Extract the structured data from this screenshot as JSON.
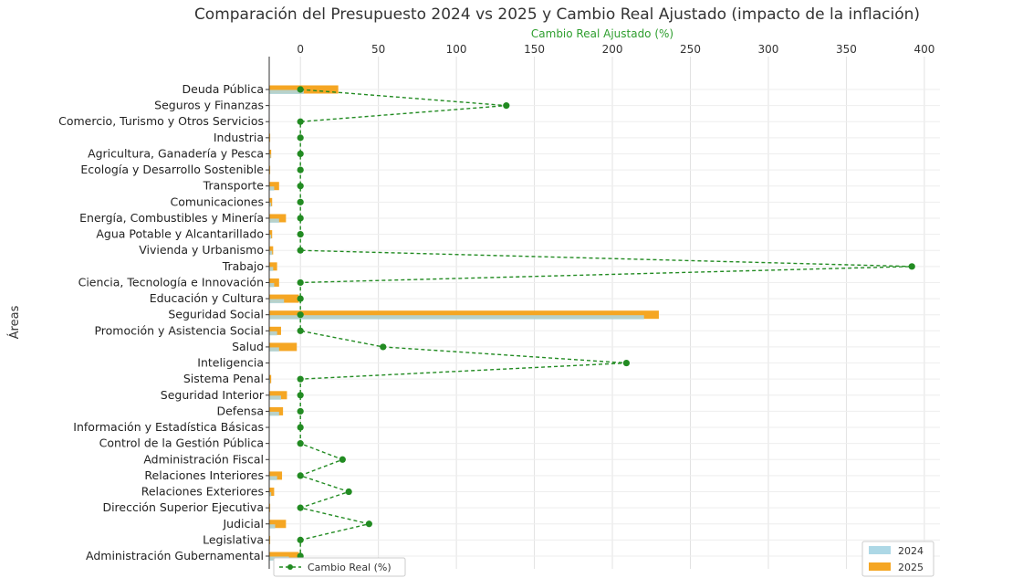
{
  "chart_data": {
    "type": "bar",
    "orientation": "horizontal",
    "title": "Comparación del Presupuesto 2024 vs 2025 y Cambio Real Ajustado (impacto de la inflación)",
    "ylabel": "Áreas",
    "xlabel_top": "Cambio Real Ajustado (%)",
    "xticks_top": [
      0,
      50,
      100,
      150,
      200,
      250,
      300,
      350,
      400
    ],
    "x2lim": [
      -20,
      410
    ],
    "xlim_budget": [
      0,
      680
    ],
    "grid": true,
    "legend_position": "bottom-right",
    "categories": [
      "Deuda Pública",
      "Seguros y Finanzas",
      "Comercio, Turismo y Otros Servicios",
      "Industria",
      "Agricultura, Ganadería y Pesca",
      "Ecología y Desarrollo Sostenible",
      "Transporte",
      "Comunicaciones",
      "Energía, Combustibles y Minería",
      "Agua Potable y Alcantarillado",
      "Vivienda y Urbanismo",
      "Trabajo",
      "Ciencia, Tecnología e Innovación",
      "Educación y Cultura",
      "Seguridad Social",
      "Promoción y Asistencia Social",
      "Salud",
      "Inteligencia",
      "Sistema Penal",
      "Seguridad Interior",
      "Defensa",
      "Información y Estadística Básicas",
      "Control de la Gestión Pública",
      "Administración Fiscal",
      "Relaciones Interiores",
      "Relaciones Exteriores",
      "Dirección Superior Ejecutiva",
      "Judicial",
      "Legislativa",
      "Administración Gubernamental"
    ],
    "series": [
      {
        "name": "2024",
        "color": "#add8e6",
        "values": [
          35,
          0.5,
          0.5,
          0.5,
          1.5,
          0.5,
          5,
          2,
          10,
          2,
          3,
          4,
          5,
          15,
          380,
          8,
          10,
          0.3,
          1,
          12,
          10,
          0.5,
          0.5,
          0.5,
          8,
          2,
          0.5,
          6,
          0.5,
          20
        ]
      },
      {
        "name": "2025",
        "color": "#f5a623",
        "values": [
          70,
          0.5,
          0.5,
          1,
          2,
          1,
          10,
          3,
          17,
          3,
          4,
          8,
          10,
          30,
          395,
          12,
          28,
          0.5,
          2,
          18,
          14,
          0.5,
          0.5,
          0.5,
          13,
          5,
          1,
          17,
          1,
          30
        ]
      },
      {
        "name": "Cambio Real (%)",
        "color": "#228b22",
        "type": "line",
        "values": [
          0,
          132,
          0,
          0,
          0,
          0,
          0,
          0,
          0,
          0,
          0,
          392,
          0,
          0,
          0,
          0,
          53,
          209,
          0,
          0,
          0,
          0,
          0,
          27,
          0,
          31,
          0,
          44,
          0,
          0
        ]
      }
    ]
  }
}
